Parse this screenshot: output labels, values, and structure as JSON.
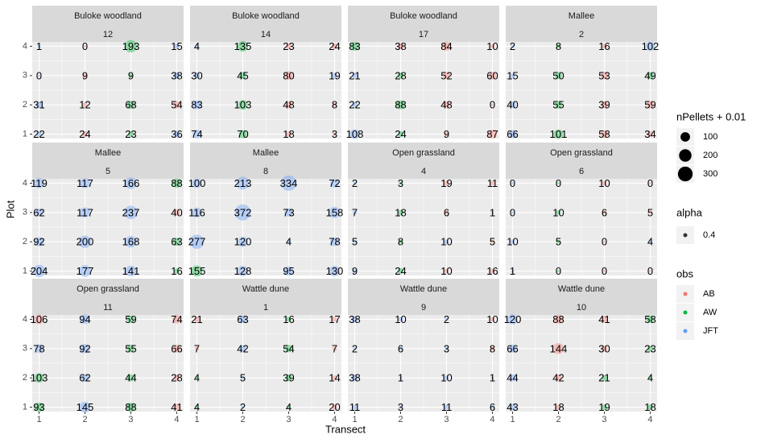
{
  "chart_data": {
    "type": "scatter",
    "x_label": "Transect",
    "y_label": "Plot",
    "xlim": [
      0.85,
      4.15
    ],
    "ylim": [
      0.85,
      4.15
    ],
    "xticks": [
      1,
      2,
      3,
      4
    ],
    "yticks": [
      1,
      2,
      3,
      4
    ],
    "grid": true,
    "x": [
      1,
      2,
      3,
      4,
      1,
      2,
      3,
      4,
      1,
      2,
      3,
      4,
      1,
      2,
      3,
      4
    ],
    "y": [
      4,
      4,
      4,
      4,
      3,
      3,
      3,
      3,
      2,
      2,
      2,
      2,
      1,
      1,
      1,
      1
    ],
    "alpha": 0.4,
    "legend": {
      "size": {
        "title": "nPellets + 0.01",
        "breaks": [
          100,
          200,
          300
        ]
      },
      "alpha": {
        "title": "alpha",
        "value": 0.4
      },
      "obs": {
        "title": "obs",
        "levels": [
          "AB",
          "AW",
          "JFT"
        ],
        "colors": [
          "#F8766D",
          "#00BA38",
          "#619CFF"
        ]
      }
    },
    "facets": [
      {
        "strip": [
          "Buloke woodland",
          "12"
        ],
        "values": [
          1,
          0,
          193,
          15,
          0,
          9,
          9,
          38,
          31,
          12,
          68,
          54,
          22,
          24,
          23,
          36
        ],
        "obs": [
          "JFT",
          "AB",
          "AW",
          "JFT",
          "JFT",
          "AB",
          "AW",
          "JFT",
          "JFT",
          "AB",
          "AW",
          "AB",
          "JFT",
          "AB",
          "AW",
          "JFT"
        ]
      },
      {
        "strip": [
          "Buloke woodland",
          "14"
        ],
        "values": [
          4,
          135,
          23,
          24,
          30,
          45,
          80,
          19,
          83,
          103,
          48,
          8,
          74,
          70,
          18,
          3
        ],
        "obs": [
          "JFT",
          "AW",
          "AB",
          "AB",
          "JFT",
          "AW",
          "AB",
          "JFT",
          "JFT",
          "AW",
          "AB",
          "AB",
          "JFT",
          "AW",
          "AB",
          "AB"
        ]
      },
      {
        "strip": [
          "Buloke woodland",
          "17"
        ],
        "values": [
          83,
          38,
          84,
          10,
          21,
          28,
          52,
          60,
          22,
          88,
          48,
          0,
          108,
          24,
          9,
          87
        ],
        "obs": [
          "AW",
          "AB",
          "AB",
          "AB",
          "JFT",
          "AW",
          "AB",
          "AB",
          "JFT",
          "AW",
          "AB",
          "AB",
          "JFT",
          "AW",
          "AB",
          "AB"
        ]
      },
      {
        "strip": [
          "Mallee",
          "2"
        ],
        "values": [
          2,
          8,
          16,
          102,
          15,
          50,
          53,
          49,
          40,
          55,
          39,
          59,
          66,
          101,
          58,
          34
        ],
        "obs": [
          "JFT",
          "AW",
          "AB",
          "JFT",
          "JFT",
          "AW",
          "AB",
          "AW",
          "JFT",
          "AW",
          "AB",
          "AB",
          "JFT",
          "AW",
          "AB",
          "AB"
        ]
      },
      {
        "strip": [
          "Mallee",
          "5"
        ],
        "values": [
          119,
          117,
          166,
          88,
          62,
          117,
          237,
          40,
          92,
          200,
          168,
          63,
          204,
          177,
          141,
          16
        ],
        "obs": [
          "JFT",
          "JFT",
          "JFT",
          "AW",
          "JFT",
          "JFT",
          "JFT",
          "AB",
          "JFT",
          "JFT",
          "JFT",
          "AW",
          "JFT",
          "JFT",
          "JFT",
          "AW"
        ]
      },
      {
        "strip": [
          "Mallee",
          "8"
        ],
        "values": [
          100,
          213,
          334,
          72,
          116,
          372,
          73,
          158,
          277,
          120,
          4,
          78,
          155,
          128,
          95,
          130
        ],
        "obs": [
          "JFT",
          "JFT",
          "JFT",
          "JFT",
          "JFT",
          "JFT",
          "JFT",
          "JFT",
          "JFT",
          "JFT",
          "JFT",
          "JFT",
          "AW",
          "JFT",
          "JFT",
          "JFT"
        ]
      },
      {
        "strip": [
          "Open grassland",
          "4"
        ],
        "values": [
          2,
          3,
          19,
          11,
          7,
          18,
          6,
          1,
          5,
          8,
          10,
          5,
          9,
          24,
          10,
          16
        ],
        "obs": [
          "JFT",
          "AW",
          "AB",
          "AB",
          "JFT",
          "AW",
          "AB",
          "AB",
          "JFT",
          "AW",
          "JFT",
          "AB",
          "JFT",
          "AW",
          "AB",
          "AB"
        ]
      },
      {
        "strip": [
          "Open grassland",
          "6"
        ],
        "values": [
          0,
          0,
          10,
          0,
          0,
          10,
          6,
          5,
          10,
          5,
          0,
          4,
          1,
          0,
          0,
          0
        ],
        "obs": [
          "JFT",
          "AW",
          "AB",
          "AB",
          "JFT",
          "AW",
          "AB",
          "AB",
          "JFT",
          "AW",
          "AB",
          "JFT",
          "JFT",
          "AW",
          "AB",
          "AB"
        ]
      },
      {
        "strip": [
          "Open grassland",
          "11"
        ],
        "values": [
          106,
          94,
          59,
          74,
          78,
          92,
          55,
          66,
          103,
          62,
          44,
          28,
          93,
          145,
          88,
          41
        ],
        "obs": [
          "AB",
          "JFT",
          "AW",
          "AB",
          "JFT",
          "JFT",
          "AW",
          "AB",
          "AW",
          "JFT",
          "AW",
          "AB",
          "AW",
          "JFT",
          "AW",
          "AB"
        ]
      },
      {
        "strip": [
          "Wattle dune",
          "1"
        ],
        "values": [
          21,
          63,
          16,
          17,
          7,
          42,
          54,
          7,
          4,
          5,
          39,
          14,
          4,
          2,
          4,
          20
        ],
        "obs": [
          "AB",
          "JFT",
          "AW",
          "AB",
          "AB",
          "JFT",
          "AW",
          "AB",
          "AW",
          "JFT",
          "AW",
          "AB",
          "AW",
          "JFT",
          "AW",
          "AB"
        ]
      },
      {
        "strip": [
          "Wattle dune",
          "9"
        ],
        "values": [
          38,
          10,
          2,
          10,
          2,
          6,
          3,
          8,
          38,
          1,
          10,
          1,
          11,
          3,
          11,
          6
        ],
        "obs": [
          "JFT",
          "JFT",
          "JFT",
          "AB",
          "JFT",
          "JFT",
          "JFT",
          "AB",
          "JFT",
          "JFT",
          "JFT",
          "JFT",
          "JFT",
          "JFT",
          "JFT",
          "JFT"
        ]
      },
      {
        "strip": [
          "Wattle dune",
          "10"
        ],
        "values": [
          120,
          88,
          41,
          58,
          66,
          144,
          30,
          23,
          44,
          42,
          21,
          4,
          43,
          18,
          19,
          18
        ],
        "obs": [
          "JFT",
          "AB",
          "AB",
          "AW",
          "JFT",
          "AB",
          "AB",
          "AW",
          "JFT",
          "AB",
          "AW",
          "AW",
          "JFT",
          "AB",
          "AW",
          "AW"
        ]
      }
    ]
  }
}
